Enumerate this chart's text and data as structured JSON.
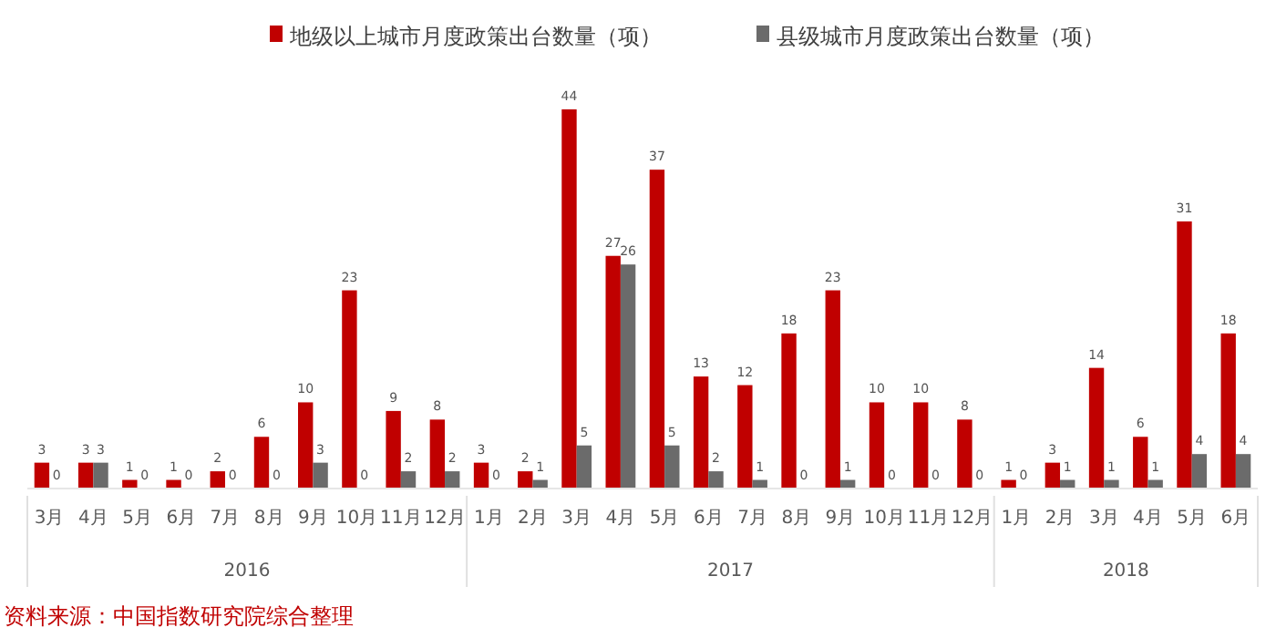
{
  "chart_data": {
    "type": "bar",
    "categories": [
      "3月",
      "4月",
      "5月",
      "6月",
      "7月",
      "8月",
      "9月",
      "10月",
      "11月",
      "12月",
      "1月",
      "2月",
      "3月",
      "4月",
      "5月",
      "6月",
      "7月",
      "8月",
      "9月",
      "10月",
      "11月",
      "12月",
      "1月",
      "2月",
      "3月",
      "4月",
      "5月",
      "6月"
    ],
    "series": [
      {
        "name": "地级以上城市月度政策出台数量（项）",
        "color": "#c00000",
        "values": [
          3,
          3,
          1,
          1,
          2,
          6,
          10,
          23,
          9,
          8,
          3,
          2,
          44,
          27,
          37,
          13,
          12,
          18,
          23,
          10,
          10,
          8,
          1,
          3,
          14,
          6,
          31,
          18
        ]
      },
      {
        "name": "县级城市月度政策出台数量（项）",
        "color": "#6b6b6b",
        "values": [
          0,
          3,
          0,
          0,
          0,
          0,
          3,
          0,
          2,
          2,
          0,
          1,
          5,
          26,
          5,
          2,
          1,
          0,
          1,
          0,
          0,
          0,
          0,
          1,
          1,
          1,
          4,
          4
        ]
      }
    ],
    "data_labels": true,
    "legend": "top",
    "annotations": [
      "2016",
      "2017",
      "2018",
      "资料来源：中国指数研究院综合整理"
    ]
  }
}
